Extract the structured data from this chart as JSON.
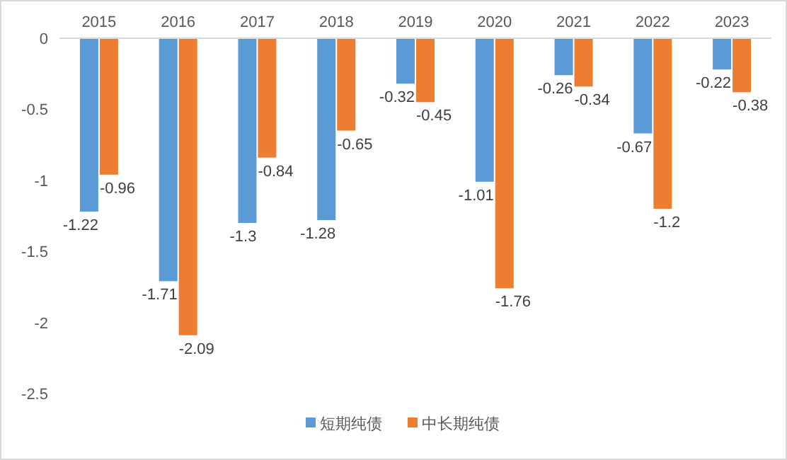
{
  "chart_data": {
    "type": "bar",
    "categories": [
      "2015",
      "2016",
      "2017",
      "2018",
      "2019",
      "2020",
      "2021",
      "2022",
      "2023"
    ],
    "series": [
      {
        "name": "短期纯债",
        "color": "#5b9bd5",
        "values": [
          -1.22,
          -1.71,
          -1.3,
          -1.28,
          -0.32,
          -1.01,
          -0.26,
          -0.67,
          -0.22
        ]
      },
      {
        "name": "中长期纯债",
        "color": "#ed7d31",
        "values": [
          -0.96,
          -2.09,
          -0.84,
          -0.65,
          -0.45,
          -1.76,
          -0.34,
          -1.2,
          -0.38
        ]
      }
    ],
    "ylim": [
      -2.5,
      0
    ],
    "yticks": [
      0,
      -0.5,
      -1,
      -1.5,
      -2,
      -2.5
    ],
    "data_labels": true,
    "legend": "bottom"
  }
}
